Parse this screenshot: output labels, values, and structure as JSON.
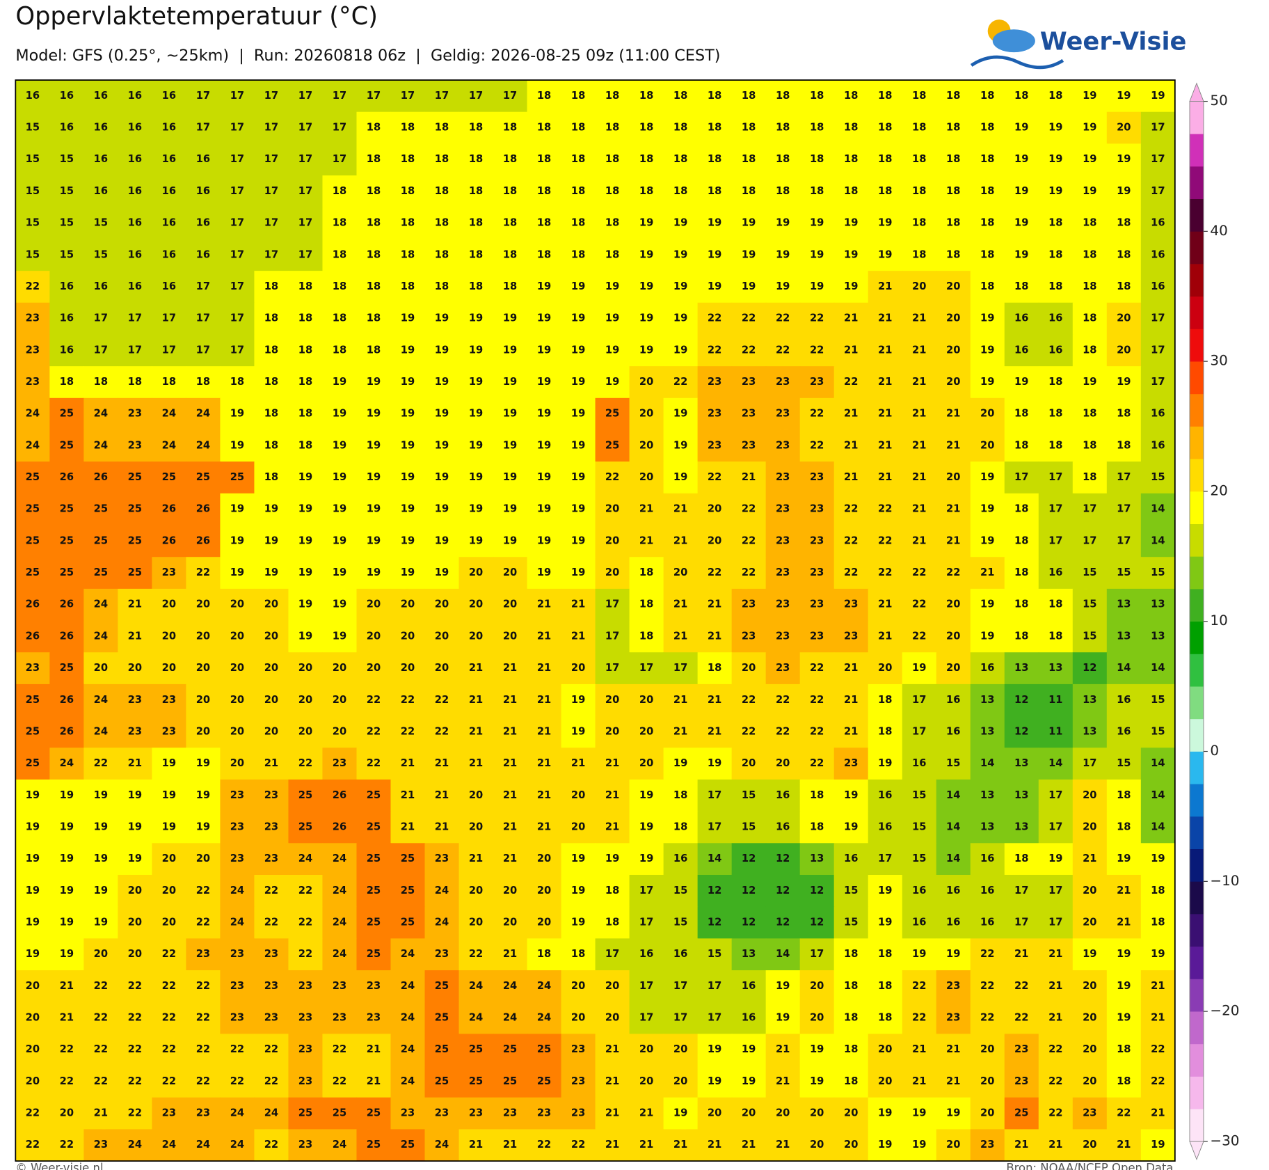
{
  "header": {
    "title": "Oppervlaktetemperatuur (°C)",
    "subtitle": "Model: GFS (0.25°, ~25km)  |  Run: 20260818 06z  |  Geldig: 2026-08-25 09z (11:00 CEST)",
    "logo": "Weer-Visie"
  },
  "map": {
    "rows": [
      [
        16,
        16,
        16,
        16,
        16,
        17,
        17,
        17,
        17,
        17,
        17,
        17,
        17,
        17,
        17,
        18,
        18,
        18,
        18,
        18,
        18,
        18,
        18,
        18,
        18,
        18,
        18,
        18,
        18,
        18,
        18,
        19,
        19,
        19
      ],
      [
        15,
        16,
        16,
        16,
        16,
        17,
        17,
        17,
        17,
        17,
        18,
        18,
        18,
        18,
        18,
        18,
        18,
        18,
        18,
        18,
        18,
        18,
        18,
        18,
        18,
        18,
        18,
        18,
        18,
        19,
        19,
        19,
        20,
        17
      ],
      [
        15,
        15,
        16,
        16,
        16,
        16,
        17,
        17,
        17,
        17,
        18,
        18,
        18,
        18,
        18,
        18,
        18,
        18,
        18,
        18,
        18,
        18,
        18,
        18,
        18,
        18,
        18,
        18,
        18,
        19,
        19,
        19,
        19,
        17
      ],
      [
        15,
        15,
        16,
        16,
        16,
        16,
        17,
        17,
        17,
        18,
        18,
        18,
        18,
        18,
        18,
        18,
        18,
        18,
        18,
        18,
        18,
        18,
        18,
        18,
        18,
        18,
        18,
        18,
        18,
        19,
        19,
        19,
        19,
        17
      ],
      [
        15,
        15,
        15,
        16,
        16,
        16,
        17,
        17,
        17,
        18,
        18,
        18,
        18,
        18,
        18,
        18,
        18,
        18,
        19,
        19,
        19,
        19,
        19,
        19,
        19,
        19,
        18,
        18,
        18,
        19,
        18,
        18,
        18,
        16
      ],
      [
        15,
        15,
        15,
        16,
        16,
        16,
        17,
        17,
        17,
        18,
        18,
        18,
        18,
        18,
        18,
        18,
        18,
        18,
        19,
        19,
        19,
        19,
        19,
        19,
        19,
        19,
        18,
        18,
        18,
        19,
        18,
        18,
        18,
        16
      ],
      [
        22,
        16,
        16,
        16,
        16,
        17,
        17,
        18,
        18,
        18,
        18,
        18,
        18,
        18,
        18,
        19,
        19,
        19,
        19,
        19,
        19,
        19,
        19,
        19,
        19,
        21,
        20,
        20,
        18,
        18,
        18,
        18,
        18,
        16
      ],
      [
        23,
        16,
        17,
        17,
        17,
        17,
        17,
        18,
        18,
        18,
        18,
        19,
        19,
        19,
        19,
        19,
        19,
        19,
        19,
        19,
        22,
        22,
        22,
        22,
        21,
        21,
        21,
        20,
        19,
        16,
        16,
        18,
        20,
        17
      ],
      [
        23,
        16,
        17,
        17,
        17,
        17,
        17,
        18,
        18,
        18,
        18,
        19,
        19,
        19,
        19,
        19,
        19,
        19,
        19,
        19,
        22,
        22,
        22,
        22,
        21,
        21,
        21,
        20,
        19,
        16,
        16,
        18,
        20,
        17
      ],
      [
        23,
        18,
        18,
        18,
        18,
        18,
        18,
        18,
        18,
        19,
        19,
        19,
        19,
        19,
        19,
        19,
        19,
        19,
        20,
        22,
        23,
        23,
        23,
        23,
        22,
        21,
        21,
        20,
        19,
        19,
        18,
        19,
        19,
        17
      ],
      [
        24,
        25,
        24,
        23,
        24,
        24,
        19,
        18,
        18,
        19,
        19,
        19,
        19,
        19,
        19,
        19,
        19,
        25,
        20,
        19,
        23,
        23,
        23,
        22,
        21,
        21,
        21,
        21,
        20,
        18,
        18,
        18,
        18,
        16
      ],
      [
        24,
        25,
        24,
        23,
        24,
        24,
        19,
        18,
        18,
        19,
        19,
        19,
        19,
        19,
        19,
        19,
        19,
        25,
        20,
        19,
        23,
        23,
        23,
        22,
        21,
        21,
        21,
        21,
        20,
        18,
        18,
        18,
        18,
        16
      ],
      [
        25,
        26,
        26,
        25,
        25,
        25,
        25,
        18,
        19,
        19,
        19,
        19,
        19,
        19,
        19,
        19,
        19,
        22,
        20,
        19,
        22,
        21,
        23,
        23,
        21,
        21,
        21,
        20,
        19,
        17,
        17,
        18,
        17,
        15
      ],
      [
        25,
        25,
        25,
        25,
        26,
        26,
        19,
        19,
        19,
        19,
        19,
        19,
        19,
        19,
        19,
        19,
        19,
        20,
        21,
        21,
        20,
        22,
        23,
        23,
        22,
        22,
        21,
        21,
        19,
        18,
        17,
        17,
        17,
        14
      ],
      [
        25,
        25,
        25,
        25,
        26,
        26,
        19,
        19,
        19,
        19,
        19,
        19,
        19,
        19,
        19,
        19,
        19,
        20,
        21,
        21,
        20,
        22,
        23,
        23,
        22,
        22,
        21,
        21,
        19,
        18,
        17,
        17,
        17,
        14
      ],
      [
        25,
        25,
        25,
        25,
        23,
        22,
        19,
        19,
        19,
        19,
        19,
        19,
        19,
        20,
        20,
        19,
        19,
        20,
        18,
        20,
        22,
        22,
        23,
        23,
        22,
        22,
        22,
        22,
        21,
        18,
        16,
        15,
        15,
        15
      ],
      [
        26,
        26,
        24,
        21,
        20,
        20,
        20,
        20,
        19,
        19,
        20,
        20,
        20,
        20,
        20,
        21,
        21,
        17,
        18,
        21,
        21,
        23,
        23,
        23,
        23,
        21,
        22,
        20,
        19,
        18,
        18,
        15,
        13,
        13
      ],
      [
        26,
        26,
        24,
        21,
        20,
        20,
        20,
        20,
        19,
        19,
        20,
        20,
        20,
        20,
        20,
        21,
        21,
        17,
        18,
        21,
        21,
        23,
        23,
        23,
        23,
        21,
        22,
        20,
        19,
        18,
        18,
        15,
        13,
        13
      ],
      [
        23,
        25,
        20,
        20,
        20,
        20,
        20,
        20,
        20,
        20,
        20,
        20,
        20,
        21,
        21,
        21,
        20,
        17,
        17,
        17,
        18,
        20,
        23,
        22,
        21,
        20,
        19,
        20,
        16,
        13,
        13,
        12,
        14,
        14
      ],
      [
        25,
        26,
        24,
        23,
        23,
        20,
        20,
        20,
        20,
        20,
        22,
        22,
        22,
        21,
        21,
        21,
        19,
        20,
        20,
        21,
        21,
        22,
        22,
        22,
        21,
        18,
        17,
        16,
        13,
        12,
        11,
        13,
        16,
        15
      ],
      [
        25,
        26,
        24,
        23,
        23,
        20,
        20,
        20,
        20,
        20,
        22,
        22,
        22,
        21,
        21,
        21,
        19,
        20,
        20,
        21,
        21,
        22,
        22,
        22,
        21,
        18,
        17,
        16,
        13,
        12,
        11,
        13,
        16,
        15
      ],
      [
        25,
        24,
        22,
        21,
        19,
        19,
        20,
        21,
        22,
        23,
        22,
        21,
        21,
        21,
        21,
        21,
        21,
        21,
        20,
        19,
        19,
        20,
        20,
        22,
        23,
        19,
        16,
        15,
        14,
        13,
        14,
        17,
        15,
        14
      ],
      [
        19,
        19,
        19,
        19,
        19,
        19,
        23,
        23,
        25,
        26,
        25,
        21,
        21,
        20,
        21,
        21,
        20,
        21,
        19,
        18,
        17,
        15,
        16,
        18,
        19,
        16,
        15,
        14,
        13,
        13,
        17,
        20,
        18,
        14
      ],
      [
        19,
        19,
        19,
        19,
        19,
        19,
        23,
        23,
        25,
        26,
        25,
        21,
        21,
        20,
        21,
        21,
        20,
        21,
        19,
        18,
        17,
        15,
        16,
        18,
        19,
        16,
        15,
        14,
        13,
        13,
        17,
        20,
        18,
        14
      ],
      [
        19,
        19,
        19,
        19,
        20,
        20,
        23,
        23,
        24,
        24,
        25,
        25,
        23,
        21,
        21,
        20,
        19,
        19,
        19,
        16,
        14,
        12,
        12,
        13,
        16,
        17,
        15,
        14,
        16,
        18,
        19,
        21,
        19,
        19
      ],
      [
        19,
        19,
        19,
        20,
        20,
        22,
        24,
        22,
        22,
        24,
        25,
        25,
        24,
        20,
        20,
        20,
        19,
        18,
        17,
        15,
        12,
        12,
        12,
        12,
        15,
        19,
        16,
        16,
        16,
        17,
        17,
        20,
        21,
        18
      ],
      [
        19,
        19,
        19,
        20,
        20,
        22,
        24,
        22,
        22,
        24,
        25,
        25,
        24,
        20,
        20,
        20,
        19,
        18,
        17,
        15,
        12,
        12,
        12,
        12,
        15,
        19,
        16,
        16,
        16,
        17,
        17,
        20,
        21,
        18
      ],
      [
        19,
        19,
        20,
        20,
        22,
        23,
        23,
        23,
        22,
        24,
        25,
        24,
        23,
        22,
        21,
        18,
        18,
        17,
        16,
        16,
        15,
        13,
        14,
        17,
        18,
        18,
        19,
        19,
        22,
        21,
        21,
        19,
        19,
        19
      ],
      [
        20,
        21,
        22,
        22,
        22,
        22,
        23,
        23,
        23,
        23,
        23,
        24,
        25,
        24,
        24,
        24,
        20,
        20,
        17,
        17,
        17,
        16,
        19,
        20,
        18,
        18,
        22,
        23,
        22,
        22,
        21,
        20,
        19,
        21
      ],
      [
        20,
        21,
        22,
        22,
        22,
        22,
        23,
        23,
        23,
        23,
        23,
        24,
        25,
        24,
        24,
        24,
        20,
        20,
        17,
        17,
        17,
        16,
        19,
        20,
        18,
        18,
        22,
        23,
        22,
        22,
        21,
        20,
        19,
        21
      ],
      [
        20,
        22,
        22,
        22,
        22,
        22,
        22,
        22,
        23,
        22,
        21,
        24,
        25,
        25,
        25,
        25,
        23,
        21,
        20,
        20,
        19,
        19,
        21,
        19,
        18,
        20,
        21,
        21,
        20,
        23,
        22,
        20,
        18,
        22
      ],
      [
        20,
        22,
        22,
        22,
        22,
        22,
        22,
        22,
        23,
        22,
        21,
        24,
        25,
        25,
        25,
        25,
        23,
        21,
        20,
        20,
        19,
        19,
        21,
        19,
        18,
        20,
        21,
        21,
        20,
        23,
        22,
        20,
        18,
        22
      ],
      [
        22,
        20,
        21,
        22,
        23,
        23,
        24,
        24,
        25,
        25,
        25,
        23,
        23,
        23,
        23,
        23,
        23,
        21,
        21,
        19,
        20,
        20,
        20,
        20,
        20,
        19,
        19,
        19,
        20,
        25,
        22,
        23,
        22,
        21
      ],
      [
        22,
        22,
        23,
        24,
        24,
        24,
        24,
        22,
        23,
        24,
        25,
        25,
        24,
        21,
        21,
        22,
        22,
        21,
        21,
        21,
        21,
        21,
        21,
        20,
        20,
        19,
        19,
        20,
        23,
        21,
        21,
        20,
        21,
        19
      ]
    ]
  },
  "colorbar": {
    "lim": [
      -30,
      50
    ],
    "ticks": [
      {
        "value": -30,
        "label": "−30"
      },
      {
        "value": -20,
        "label": "−20"
      },
      {
        "value": -10,
        "label": "−10"
      },
      0,
      10,
      20,
      30,
      40,
      50
    ],
    "colors": [
      "#fde4f7",
      "#f6b8ec",
      "#e28edd",
      "#c068cc",
      "#8a3cb4",
      "#5a1a98",
      "#3a0f72",
      "#1b0a4a",
      "#081a78",
      "#0a44a8",
      "#0c78d0",
      "#2ab8ee",
      "#ccf8dc",
      "#80dc80",
      "#30c040",
      "#00a000",
      "#40b020",
      "#80c814",
      "#c8dc00",
      "#ffff00",
      "#ffdc00",
      "#ffb400",
      "#ff8000",
      "#ff4a00",
      "#ee0c0c",
      "#cc0010",
      "#a00008",
      "#700018",
      "#4a0030",
      "#900a78",
      "#d030b8",
      "#fbaee6"
    ]
  },
  "footer": {
    "left": "© Weer-visie.nl",
    "right": "Bron: NOAA/NCEP Open Data"
  }
}
